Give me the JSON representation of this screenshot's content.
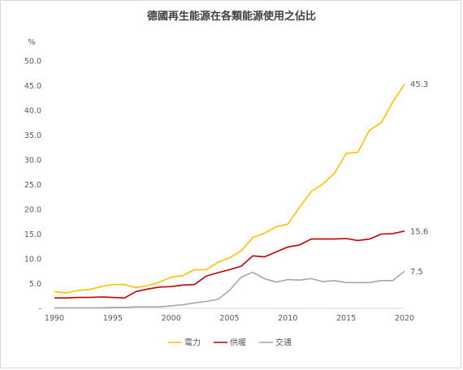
{
  "chart_data": {
    "type": "line",
    "title": "德國再生能源在各類能源使用之佔比",
    "ylabel": "%",
    "xlabel": "",
    "ylim": [
      0,
      50
    ],
    "yticks": [
      "-",
      "5.0",
      "10.0",
      "15.0",
      "20.0",
      "25.0",
      "30.0",
      "35.0",
      "40.0",
      "45.0",
      "50.0"
    ],
    "xlim": [
      1990,
      2020
    ],
    "xticks": [
      "1990",
      "1995",
      "2000",
      "2005",
      "2010",
      "2015",
      "2020"
    ],
    "grid": false,
    "legend_position": "bottom",
    "x": [
      1990,
      1991,
      1992,
      1993,
      1994,
      1995,
      1996,
      1997,
      1998,
      1999,
      2000,
      2001,
      2002,
      2003,
      2004,
      2005,
      2006,
      2007,
      2008,
      2009,
      2010,
      2011,
      2012,
      2013,
      2014,
      2015,
      2016,
      2017,
      2018,
      2019,
      2020
    ],
    "series": [
      {
        "name": "電力",
        "color": "#FFC000",
        "end_label": "45.3",
        "values": [
          3.4,
          3.1,
          3.6,
          3.8,
          4.4,
          4.8,
          4.8,
          4.2,
          4.6,
          5.3,
          6.3,
          6.6,
          7.8,
          7.8,
          9.3,
          10.2,
          11.6,
          14.3,
          15.2,
          16.5,
          17.0,
          20.4,
          23.6,
          25.1,
          27.3,
          31.3,
          31.5,
          36.0,
          37.5,
          41.7,
          45.3
        ]
      },
      {
        "name": "供暖",
        "color": "#C00000",
        "end_label": "15.6",
        "values": [
          2.1,
          2.1,
          2.2,
          2.2,
          2.3,
          2.2,
          2.1,
          3.4,
          3.9,
          4.3,
          4.4,
          4.7,
          4.8,
          6.5,
          7.2,
          7.8,
          8.5,
          10.6,
          10.4,
          11.4,
          12.4,
          12.8,
          14.0,
          14.0,
          14.0,
          14.1,
          13.7,
          14.0,
          15.0,
          15.1,
          15.6
        ]
      },
      {
        "name": "交通",
        "color": "#A6A6A6",
        "end_label": "7.5",
        "values": [
          0.1,
          0.1,
          0.1,
          0.1,
          0.1,
          0.2,
          0.2,
          0.3,
          0.3,
          0.3,
          0.5,
          0.7,
          1.1,
          1.4,
          1.8,
          3.6,
          6.3,
          7.3,
          6.0,
          5.3,
          5.8,
          5.7,
          6.0,
          5.4,
          5.6,
          5.2,
          5.2,
          5.2,
          5.6,
          5.6,
          7.5
        ]
      }
    ]
  }
}
